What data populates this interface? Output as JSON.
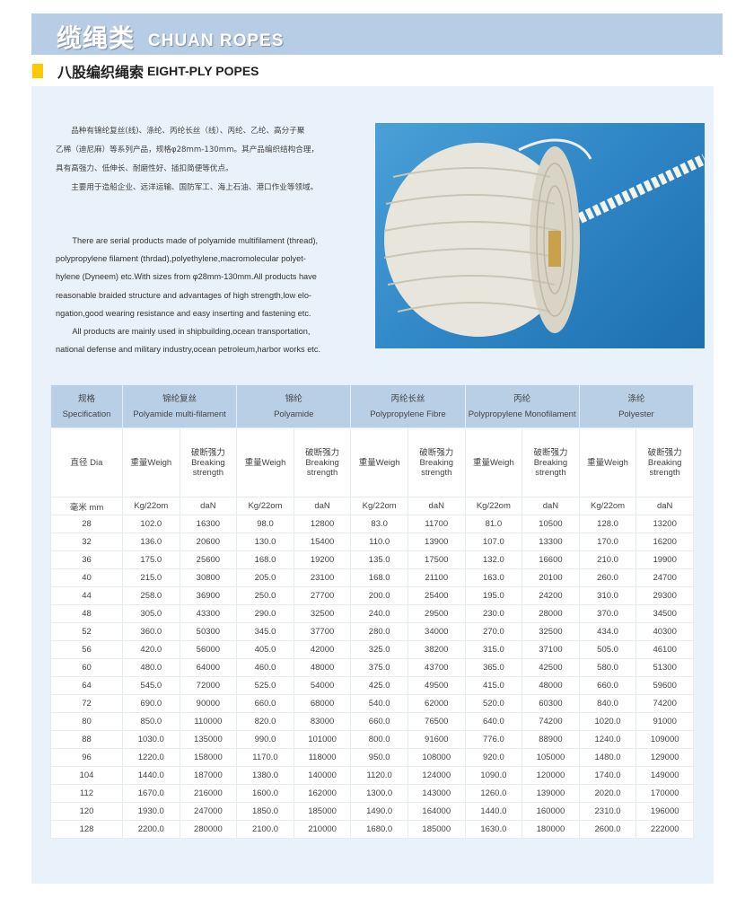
{
  "header": {
    "title_cn": "缆绳类",
    "title_en": "CHUAN ROPES"
  },
  "section": {
    "title_cn": "八股编织绳索",
    "title_en": "EIGHT-PLY POPES",
    "marker_color": "#fdc800"
  },
  "description_cn": [
    "　　品种有锦纶复丝(线)、涤纶、丙纶长丝（线）、丙纶、乙纶、高分子聚",
    "乙稀（迪尼麻）等系列产品，规格φ28mm-130mm。其产品编织结构合理，",
    "具有高强力、低伸长、耐磨性好、插扣简便等优点。",
    "　　主要用于造船企业、远洋运输、国防军工、海上石油、港口作业等领域。"
  ],
  "description_en": [
    "　　There are serial products made of polyamide multifilament (thread),",
    "polypropylene filament (thrdad),polyethylene,macromolecular polyet-",
    "hylene (Dyneem) etc.With sizes from φ28mm-130mm.All products have",
    "reasonable braided structure and advantages of high strength,low elo-",
    "ngation,good wearing resistance and easy  inserting and fastening etc.",
    "　　All products are mainly used in shipbuilding,ocean transportation,",
    "national defense and military industry,ocean petroleum,harbor works etc."
  ],
  "photo": {
    "subject": "coiled white eight-strand braided rope"
  },
  "table": {
    "spec": {
      "cn": "规格",
      "en": "Specification"
    },
    "materials": [
      {
        "cn": "锦纶复丝",
        "en": "Polyamide multi-filament"
      },
      {
        "cn": "锦纶",
        "en": "Polyamide"
      },
      {
        "cn": "丙纶长丝",
        "en": "Polypropylene Fibre"
      },
      {
        "cn": "丙纶",
        "en": "Polypropylene Monofilament"
      },
      {
        "cn": "涤纶",
        "en": "Polyester"
      }
    ],
    "dia_label": "直径 Dia",
    "weight_label": "重量Weigh",
    "strength_label": {
      "cn": "破断强力",
      "en1": "Breaking",
      "en2": "strength"
    },
    "unit_dia": "毫米 mm",
    "unit_weight": "Kg/22om",
    "unit_strength": "daN",
    "rows": [
      [
        "28",
        "102.0",
        "16300",
        "98.0",
        "12800",
        "83.0",
        "11700",
        "81.0",
        "10500",
        "128.0",
        "13200"
      ],
      [
        "32",
        "136.0",
        "20600",
        "130.0",
        "15400",
        "110.0",
        "13900",
        "107.0",
        "13300",
        "170.0",
        "16200"
      ],
      [
        "36",
        "175.0",
        "25600",
        "168.0",
        "19200",
        "135.0",
        "17500",
        "132.0",
        "16600",
        "210.0",
        "19900"
      ],
      [
        "40",
        "215.0",
        "30800",
        "205.0",
        "23100",
        "168.0",
        "21100",
        "163.0",
        "20100",
        "260.0",
        "24700"
      ],
      [
        "44",
        "258.0",
        "36900",
        "250.0",
        "27700",
        "200.0",
        "25400",
        "195.0",
        "24200",
        "310.0",
        "29300"
      ],
      [
        "48",
        "305.0",
        "43300",
        "290.0",
        "32500",
        "240.0",
        "29500",
        "230.0",
        "28000",
        "370.0",
        "34500"
      ],
      [
        "52",
        "360.0",
        "50300",
        "345.0",
        "37700",
        "280.0",
        "34000",
        "270.0",
        "32500",
        "434.0",
        "40300"
      ],
      [
        "56",
        "420.0",
        "56000",
        "405.0",
        "42000",
        "325.0",
        "38200",
        "315.0",
        "37100",
        "505.0",
        "46100"
      ],
      [
        "60",
        "480.0",
        "64000",
        "460.0",
        "48000",
        "375.0",
        "43700",
        "365.0",
        "42500",
        "580.0",
        "51300"
      ],
      [
        "64",
        "545.0",
        "72000",
        "525.0",
        "54000",
        "425.0",
        "49500",
        "415.0",
        "48000",
        "660.0",
        "59600"
      ],
      [
        "72",
        "690.0",
        "90000",
        "660.0",
        "68000",
        "540.0",
        "62000",
        "520.0",
        "60300",
        "840.0",
        "74200"
      ],
      [
        "80",
        "850.0",
        "110000",
        "820.0",
        "83000",
        "660.0",
        "76500",
        "640.0",
        "74200",
        "1020.0",
        "91000"
      ],
      [
        "88",
        "1030.0",
        "135000",
        "990.0",
        "101000",
        "800.0",
        "91600",
        "776.0",
        "88900",
        "1240.0",
        "109000"
      ],
      [
        "96",
        "1220.0",
        "158000",
        "1170.0",
        "118000",
        "950.0",
        "108000",
        "920.0",
        "105000",
        "1480.0",
        "129000"
      ],
      [
        "104",
        "1440.0",
        "187000",
        "1380.0",
        "140000",
        "1120.0",
        "124000",
        "1090.0",
        "120000",
        "1740.0",
        "149000"
      ],
      [
        "112",
        "1670.0",
        "216000",
        "1600.0",
        "162000",
        "1300.0",
        "143000",
        "1260.0",
        "139000",
        "2020.0",
        "170000"
      ],
      [
        "120",
        "1930.0",
        "247000",
        "1850.0",
        "185000",
        "1490.0",
        "164000",
        "1440.0",
        "160000",
        "2310.0",
        "196000"
      ],
      [
        "128",
        "2200.0",
        "280000",
        "2100.0",
        "210000",
        "1680.0",
        "185000",
        "1630.0",
        "180000",
        "2600.0",
        "222000"
      ]
    ]
  }
}
